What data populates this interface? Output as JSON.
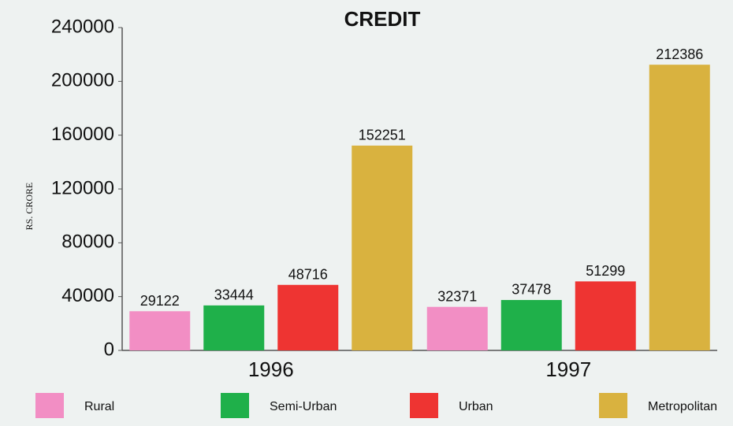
{
  "chart_data": {
    "type": "bar",
    "title": "CREDIT",
    "y_label": "RS. CRORE",
    "categories": [
      "1996",
      "1997"
    ],
    "series": [
      {
        "name": "Rural",
        "color": "#f28ec4",
        "values": [
          29122,
          32371
        ]
      },
      {
        "name": "Semi-Urban",
        "color": "#1fb04a",
        "values": [
          33444,
          37478
        ]
      },
      {
        "name": "Urban",
        "color": "#ee3432",
        "values": [
          48716,
          51299
        ]
      },
      {
        "name": "Metropolitan",
        "color": "#d9b23f",
        "values": [
          152251,
          212386
        ]
      }
    ],
    "ylim": [
      0,
      240000
    ],
    "yticks": [
      0,
      40000,
      80000,
      120000,
      160000,
      200000,
      240000
    ],
    "legend": "bottom"
  }
}
